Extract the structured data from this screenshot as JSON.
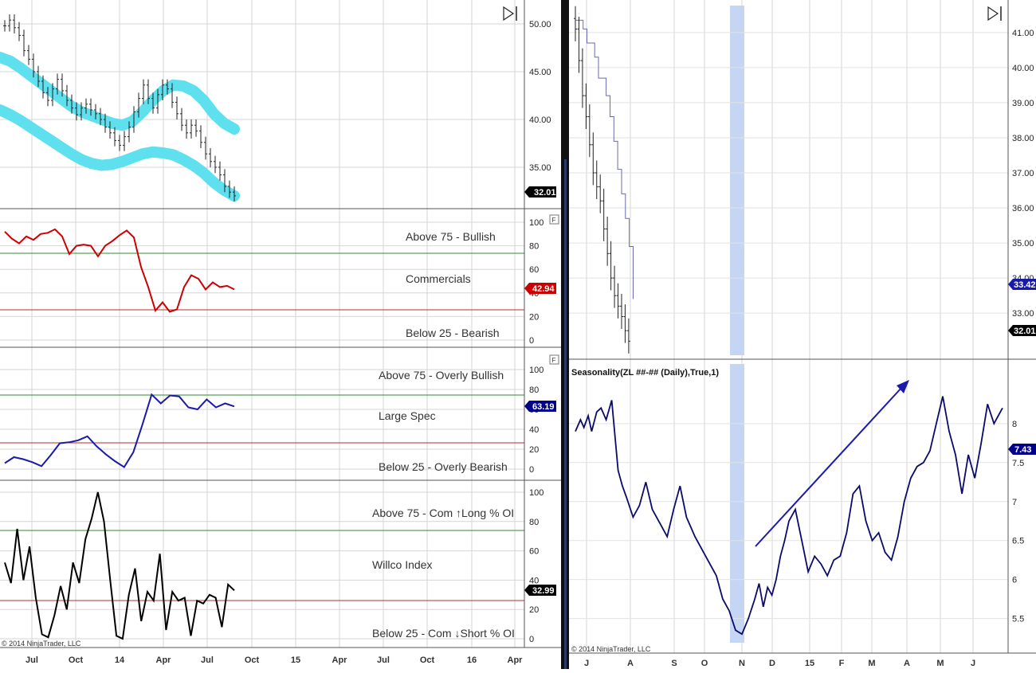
{
  "left": {
    "copyright": "© 2014 NinjaTrader, LLC",
    "x_ticks": [
      "Jul",
      "Oct",
      "14",
      "Apr",
      "Jul",
      "Oct",
      "15",
      "Apr",
      "Jul",
      "Oct",
      "16",
      "Apr"
    ],
    "price": {
      "yticks": [
        "50.00",
        "45.00",
        "40.00",
        "35.00"
      ],
      "last": "32.01",
      "last_color": "#000000",
      "band_color": "#5EE0EE",
      "chart_data": {
        "type": "ohlc",
        "title": "",
        "ylim": [
          31,
          51.5
        ],
        "y_close": [
          49.8,
          50.4,
          49.6,
          48.8,
          47.2,
          46.3,
          45.0,
          44.0,
          42.8,
          42.0,
          43.2,
          44.2,
          43.0,
          42.0,
          41.2,
          40.5,
          41.2,
          41.6,
          41.0,
          40.6,
          40.0,
          39.2,
          38.6,
          37.8,
          37.3,
          38.2,
          39.2,
          40.8,
          42.2,
          43.6,
          42.2,
          41.2,
          42.6,
          43.6,
          43.2,
          41.8,
          40.6,
          39.4,
          38.6,
          39.4,
          38.8,
          37.6,
          36.4,
          35.6,
          35.0,
          34.2,
          33.0,
          32.4,
          32.01
        ],
        "band_upper": [
          46.5,
          46.1,
          45.4,
          44.6,
          43.8,
          43.0,
          42.2,
          41.4,
          40.8,
          40.4,
          40.0,
          39.6,
          39.4,
          39.8,
          40.8,
          42.0,
          43.0,
          43.6,
          43.5,
          43.0,
          42.0,
          40.6,
          39.6,
          39.0
        ],
        "band_lower": [
          41.0,
          40.5,
          39.9,
          39.2,
          38.5,
          37.8,
          37.1,
          36.4,
          35.8,
          35.4,
          35.2,
          35.3,
          35.6,
          36.0,
          36.4,
          36.6,
          36.5,
          36.3,
          35.8,
          35.2,
          34.4,
          33.4,
          32.6,
          32.0
        ]
      }
    },
    "commercials": {
      "yticks": [
        "100",
        "80",
        "60",
        "40",
        "20",
        "0"
      ],
      "last": "42.94",
      "last_color": "#CC0000",
      "line_color": "#CC0000",
      "label_above": "Above 75 - Bullish",
      "label_mid": "Commercials",
      "label_below": "Below 25 - Bearish",
      "chart_data": {
        "type": "line",
        "ylim": [
          0,
          100
        ],
        "hlines": [
          75,
          25
        ],
        "y": [
          92,
          86,
          82,
          88,
          85,
          90,
          91,
          94,
          88,
          73,
          80,
          81,
          80,
          71,
          80,
          84,
          89,
          93,
          87,
          62,
          45,
          25,
          32,
          24,
          26,
          45,
          55,
          52,
          43,
          49,
          45,
          46,
          43
        ]
      }
    },
    "large_spec": {
      "yticks": [
        "100",
        "80",
        "60",
        "40",
        "20",
        "0"
      ],
      "last": "63.19",
      "last_color": "#00008B",
      "line_color": "#1a1aaa",
      "label_above": "Above 75 - Overly Bullish",
      "label_mid": "Large Spec",
      "label_below": "Below 25 - Overly Bearish",
      "chart_data": {
        "type": "line",
        "ylim": [
          0,
          100
        ],
        "hlines": [
          75,
          25
        ],
        "y": [
          6,
          12,
          10,
          7,
          3,
          14,
          26,
          27,
          29,
          33,
          23,
          15,
          8,
          2,
          17,
          45,
          75,
          66,
          74,
          73,
          62,
          60,
          70,
          62,
          66,
          63
        ]
      }
    },
    "willco": {
      "yticks": [
        "100",
        "80",
        "60",
        "40",
        "20",
        "0"
      ],
      "last": "32.99",
      "last_color": "#000000",
      "line_color": "#000000",
      "label_above": "Above 75 - Com ↑Long % OI",
      "label_mid": "Willco Index",
      "label_below": "Below 25 - Com ↓Short % OI",
      "chart_data": {
        "type": "line",
        "ylim": [
          0,
          100
        ],
        "hlines": [
          75,
          25
        ],
        "y": [
          52,
          38,
          75,
          40,
          63,
          28,
          3,
          1,
          16,
          36,
          20,
          52,
          38,
          68,
          82,
          100,
          80,
          40,
          2,
          0,
          30,
          48,
          12,
          32,
          26,
          58,
          6,
          32,
          26,
          28,
          2,
          26,
          24,
          30,
          28,
          8,
          37,
          33
        ]
      }
    }
  },
  "right": {
    "copyright": "© 2014 NinjaTrader, LLC",
    "x_ticks": [
      "J",
      "A",
      "S",
      "O",
      "N",
      "D",
      "15",
      "F",
      "M",
      "A",
      "M",
      "J"
    ],
    "price": {
      "yticks": [
        "41.00",
        "40.00",
        "39.00",
        "38.00",
        "37.00",
        "36.00",
        "35.00",
        "34.00",
        "33.00"
      ],
      "last_blue": "33.42",
      "last_blue_color": "#1a1aaa",
      "last_black": "32.01",
      "last_black_color": "#000000",
      "chart_data": {
        "type": "ohlc",
        "ylim": [
          31.8,
          41.7
        ],
        "y_close": [
          41.1,
          40.2,
          39.2,
          38.6,
          37.8,
          37.0,
          36.6,
          36.2,
          35.4,
          34.7,
          34.0,
          33.5,
          33.2,
          32.9,
          32.5,
          32.2
        ],
        "x_start": 0.0,
        "x_end": 0.52,
        "y_stairs": [
          41.35,
          41.35,
          41.1,
          40.7,
          40.7,
          40.3,
          39.7,
          39.7,
          39.2,
          38.6,
          37.9,
          37.1,
          36.4,
          35.7,
          34.9,
          33.4
        ]
      }
    },
    "seasonality": {
      "title": "Seasonality(ZL ##-## (Daily),True,1)",
      "yticks": [
        "8",
        "7.5",
        "7",
        "6.5",
        "6",
        "5.5"
      ],
      "last": "7.43",
      "last_color": "#00008B",
      "line_color": "#0a0a6a",
      "arrow_color": "#1a1aaa",
      "highlight_color": "#C5D6F5",
      "chart_data": {
        "type": "line",
        "ylim": [
          5.2,
          8.55
        ],
        "x": [
          0,
          0.012,
          0.02,
          0.03,
          0.038,
          0.05,
          0.06,
          0.072,
          0.085,
          0.1,
          0.11,
          0.12,
          0.135,
          0.15,
          0.165,
          0.18,
          0.2,
          0.215,
          0.23,
          0.245,
          0.26,
          0.28,
          0.3,
          0.315,
          0.33,
          0.345,
          0.36,
          0.375,
          0.39,
          0.405,
          0.42,
          0.43,
          0.44,
          0.45,
          0.46,
          0.47,
          0.48,
          0.49,
          0.5,
          0.515,
          0.53,
          0.545,
          0.56,
          0.575,
          0.59,
          0.605,
          0.62,
          0.635,
          0.65,
          0.665,
          0.68,
          0.695,
          0.71,
          0.725,
          0.74,
          0.755,
          0.77,
          0.785,
          0.8,
          0.815,
          0.83,
          0.845,
          0.86,
          0.875,
          0.89,
          0.905,
          0.92,
          0.935,
          0.95,
          0.965,
          0.98,
          0.99,
          1.0
        ],
        "y": [
          7.9,
          8.05,
          7.95,
          8.1,
          7.9,
          8.15,
          8.2,
          8.05,
          8.3,
          7.4,
          7.2,
          7.05,
          6.8,
          6.95,
          7.25,
          6.9,
          6.7,
          6.55,
          6.9,
          7.2,
          6.8,
          6.55,
          6.35,
          6.2,
          6.05,
          5.75,
          5.6,
          5.35,
          5.3,
          5.5,
          5.75,
          5.95,
          5.65,
          5.9,
          5.8,
          6.0,
          6.3,
          6.5,
          6.75,
          6.9,
          6.5,
          6.1,
          6.3,
          6.2,
          6.05,
          6.25,
          6.3,
          6.6,
          7.1,
          7.2,
          6.75,
          6.5,
          6.6,
          6.35,
          6.25,
          6.55,
          7.0,
          7.3,
          7.45,
          7.5,
          7.65,
          8.0,
          8.35,
          7.9,
          7.6,
          7.1,
          7.6,
          7.3,
          7.75,
          8.25,
          8.0,
          8.1,
          8.2
        ]
      }
    }
  }
}
